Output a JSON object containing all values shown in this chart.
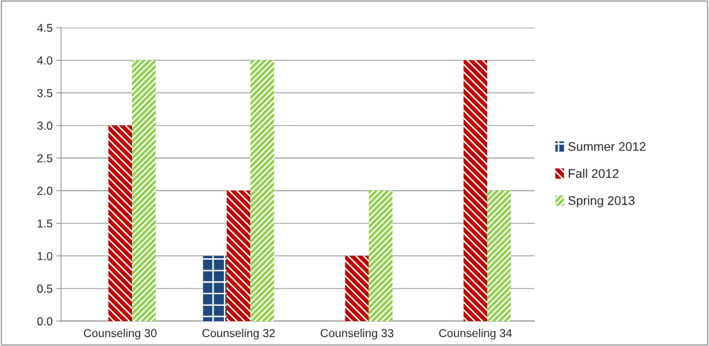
{
  "chart_data": {
    "type": "bar",
    "categories": [
      "Counseling 30",
      "Counseling 32",
      "Counseling 33",
      "Counseling 34"
    ],
    "series": [
      {
        "name": "Summer 2012",
        "color": "#1f497d",
        "values": [
          null,
          1.0,
          null,
          null
        ]
      },
      {
        "name": "Fall 2012",
        "color": "#c00000",
        "values": [
          3.0,
          2.0,
          1.0,
          4.0
        ]
      },
      {
        "name": "Spring 2013",
        "color": "#92d050",
        "values": [
          4.0,
          4.0,
          2.0,
          2.0
        ]
      }
    ],
    "ylim": [
      0,
      4.5
    ],
    "yticks": [
      {
        "value": 0,
        "label": "0.0"
      },
      {
        "value": 0.5,
        "label": "0.5"
      },
      {
        "value": 1,
        "label": "1.0"
      },
      {
        "value": 1.5,
        "label": "1.5"
      },
      {
        "value": 2,
        "label": "2.0"
      },
      {
        "value": 2.5,
        "label": "2.5"
      },
      {
        "value": 3,
        "label": "3.0"
      },
      {
        "value": 3.5,
        "label": "3.5"
      },
      {
        "value": 4,
        "label": "4.0"
      },
      {
        "value": 4.5,
        "label": "4.5"
      }
    ],
    "grid": "y",
    "legend": "right"
  }
}
